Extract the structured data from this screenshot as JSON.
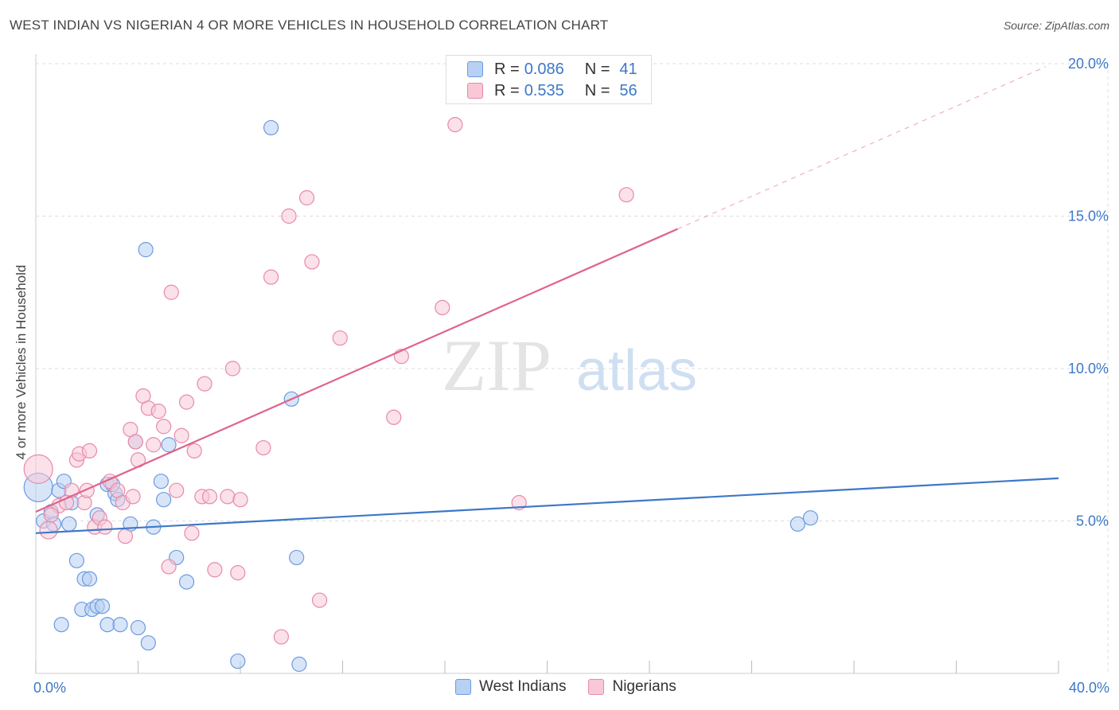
{
  "title": "WEST INDIAN VS NIGERIAN 4 OR MORE VEHICLES IN HOUSEHOLD CORRELATION CHART",
  "source": "Source: ZipAtlas.com",
  "watermark": {
    "zip": "ZIP",
    "atlas": "atlas"
  },
  "legend": {
    "r_label": "R =",
    "n_label": "N =",
    "rows": [
      {
        "r": "0.086",
        "n": "41",
        "color": "#6b9be0",
        "fill": "#b8d0f3"
      },
      {
        "r": "0.535",
        "n": "56",
        "color": "#e88aa8",
        "fill": "#f8c8d7"
      }
    ]
  },
  "bottom_legend": [
    "West Indians",
    "Nigerians"
  ],
  "chart_data": {
    "type": "scatter",
    "title": "WEST INDIAN VS NIGERIAN 4 OR MORE VEHICLES IN HOUSEHOLD CORRELATION CHART",
    "xlabel": "",
    "ylabel": "4 or more Vehicles in Household",
    "xlim": [
      0,
      40
    ],
    "ylim": [
      0,
      20
    ],
    "x_tick_labels": [
      "0.0%",
      "40.0%"
    ],
    "y_ticks": [
      5,
      10,
      15,
      20
    ],
    "y_tick_labels": [
      "5.0%",
      "10.0%",
      "15.0%",
      "20.0%"
    ],
    "series": [
      {
        "name": "West Indians",
        "color": "#3d78c8",
        "fill": "#b8d0f3",
        "stroke": "#6b9be0",
        "trend": {
          "x0": 0,
          "y0": 4.6,
          "x1": 40,
          "y1": 6.4,
          "solid_to": 40
        },
        "points": [
          {
            "x": 0.1,
            "y": 6.1,
            "r": 18
          },
          {
            "x": 0.3,
            "y": 5.0,
            "r": 9
          },
          {
            "x": 0.6,
            "y": 5.3,
            "r": 9
          },
          {
            "x": 0.9,
            "y": 6.0,
            "r": 9
          },
          {
            "x": 1.1,
            "y": 6.3,
            "r": 9
          },
          {
            "x": 1.4,
            "y": 5.6,
            "r": 9
          },
          {
            "x": 0.7,
            "y": 4.9,
            "r": 9
          },
          {
            "x": 1.3,
            "y": 4.9,
            "r": 9
          },
          {
            "x": 2.4,
            "y": 5.2,
            "r": 9
          },
          {
            "x": 2.8,
            "y": 6.2,
            "r": 9
          },
          {
            "x": 3.1,
            "y": 5.9,
            "r": 9
          },
          {
            "x": 3.2,
            "y": 5.7,
            "r": 9
          },
          {
            "x": 3.7,
            "y": 4.9,
            "r": 9
          },
          {
            "x": 4.6,
            "y": 4.8,
            "r": 9
          },
          {
            "x": 4.9,
            "y": 6.3,
            "r": 9
          },
          {
            "x": 5.0,
            "y": 5.7,
            "r": 9
          },
          {
            "x": 5.2,
            "y": 7.5,
            "r": 9
          },
          {
            "x": 3.9,
            "y": 7.6,
            "r": 9
          },
          {
            "x": 1.6,
            "y": 3.7,
            "r": 9
          },
          {
            "x": 1.9,
            "y": 3.1,
            "r": 9
          },
          {
            "x": 2.1,
            "y": 3.1,
            "r": 9
          },
          {
            "x": 1.8,
            "y": 2.1,
            "r": 9
          },
          {
            "x": 2.2,
            "y": 2.1,
            "r": 9
          },
          {
            "x": 2.4,
            "y": 2.2,
            "r": 9
          },
          {
            "x": 2.6,
            "y": 2.2,
            "r": 9
          },
          {
            "x": 1.0,
            "y": 1.6,
            "r": 9
          },
          {
            "x": 2.8,
            "y": 1.6,
            "r": 9
          },
          {
            "x": 3.3,
            "y": 1.6,
            "r": 9
          },
          {
            "x": 4.0,
            "y": 1.5,
            "r": 9
          },
          {
            "x": 4.4,
            "y": 1.0,
            "r": 9
          },
          {
            "x": 5.5,
            "y": 3.8,
            "r": 9
          },
          {
            "x": 5.9,
            "y": 3.0,
            "r": 9
          },
          {
            "x": 4.3,
            "y": 13.9,
            "r": 9
          },
          {
            "x": 9.2,
            "y": 17.9,
            "r": 9
          },
          {
            "x": 10.0,
            "y": 9.0,
            "r": 9
          },
          {
            "x": 10.2,
            "y": 3.8,
            "r": 9
          },
          {
            "x": 7.9,
            "y": 0.4,
            "r": 9
          },
          {
            "x": 10.3,
            "y": 0.3,
            "r": 9
          },
          {
            "x": 29.8,
            "y": 4.9,
            "r": 9
          },
          {
            "x": 30.3,
            "y": 5.1,
            "r": 9
          },
          {
            "x": 3.0,
            "y": 6.2,
            "r": 9
          }
        ]
      },
      {
        "name": "Nigerians",
        "color": "#e0638d",
        "fill": "#f8c8d7",
        "stroke": "#e88aa8",
        "trend": {
          "x0": 0,
          "y0": 5.3,
          "x1": 39.5,
          "y1": 19.9,
          "solid_to": 25.1
        },
        "points": [
          {
            "x": 0.1,
            "y": 6.7,
            "r": 18
          },
          {
            "x": 0.5,
            "y": 4.7,
            "r": 11
          },
          {
            "x": 0.9,
            "y": 5.5,
            "r": 9
          },
          {
            "x": 1.4,
            "y": 6.0,
            "r": 9
          },
          {
            "x": 1.6,
            "y": 7.0,
            "r": 9
          },
          {
            "x": 1.7,
            "y": 7.2,
            "r": 9
          },
          {
            "x": 2.1,
            "y": 7.3,
            "r": 9
          },
          {
            "x": 1.9,
            "y": 5.6,
            "r": 9
          },
          {
            "x": 2.3,
            "y": 4.8,
            "r": 9
          },
          {
            "x": 2.5,
            "y": 5.1,
            "r": 9
          },
          {
            "x": 2.9,
            "y": 6.3,
            "r": 9
          },
          {
            "x": 3.2,
            "y": 6.0,
            "r": 9
          },
          {
            "x": 3.4,
            "y": 5.6,
            "r": 9
          },
          {
            "x": 3.5,
            "y": 4.5,
            "r": 9
          },
          {
            "x": 3.7,
            "y": 8.0,
            "r": 9
          },
          {
            "x": 3.9,
            "y": 7.6,
            "r": 9
          },
          {
            "x": 4.0,
            "y": 7.0,
            "r": 9
          },
          {
            "x": 4.2,
            "y": 9.1,
            "r": 9
          },
          {
            "x": 4.4,
            "y": 8.7,
            "r": 9
          },
          {
            "x": 4.6,
            "y": 7.5,
            "r": 9
          },
          {
            "x": 4.8,
            "y": 8.6,
            "r": 9
          },
          {
            "x": 5.0,
            "y": 8.1,
            "r": 9
          },
          {
            "x": 5.3,
            "y": 12.5,
            "r": 9
          },
          {
            "x": 5.5,
            "y": 6.0,
            "r": 9
          },
          {
            "x": 5.7,
            "y": 7.8,
            "r": 9
          },
          {
            "x": 5.9,
            "y": 8.9,
            "r": 9
          },
          {
            "x": 6.1,
            "y": 4.6,
            "r": 9
          },
          {
            "x": 6.2,
            "y": 7.3,
            "r": 9
          },
          {
            "x": 6.5,
            "y": 5.8,
            "r": 9
          },
          {
            "x": 6.6,
            "y": 9.5,
            "r": 9
          },
          {
            "x": 7.0,
            "y": 3.4,
            "r": 9
          },
          {
            "x": 7.5,
            "y": 5.8,
            "r": 9
          },
          {
            "x": 7.7,
            "y": 10.0,
            "r": 9
          },
          {
            "x": 7.9,
            "y": 3.3,
            "r": 9
          },
          {
            "x": 8.0,
            "y": 5.7,
            "r": 9
          },
          {
            "x": 8.9,
            "y": 7.4,
            "r": 9
          },
          {
            "x": 9.2,
            "y": 13.0,
            "r": 9
          },
          {
            "x": 9.6,
            "y": 1.2,
            "r": 9
          },
          {
            "x": 9.9,
            "y": 15.0,
            "r": 9
          },
          {
            "x": 10.6,
            "y": 15.6,
            "r": 9
          },
          {
            "x": 10.8,
            "y": 13.5,
            "r": 9
          },
          {
            "x": 11.1,
            "y": 2.4,
            "r": 9
          },
          {
            "x": 11.9,
            "y": 11.0,
            "r": 9
          },
          {
            "x": 14.3,
            "y": 10.4,
            "r": 9
          },
          {
            "x": 14.0,
            "y": 8.4,
            "r": 9
          },
          {
            "x": 15.9,
            "y": 12.0,
            "r": 9
          },
          {
            "x": 16.4,
            "y": 18.0,
            "r": 9
          },
          {
            "x": 18.9,
            "y": 5.6,
            "r": 9
          },
          {
            "x": 23.1,
            "y": 15.7,
            "r": 9
          },
          {
            "x": 5.2,
            "y": 3.5,
            "r": 9
          },
          {
            "x": 1.2,
            "y": 5.6,
            "r": 9
          },
          {
            "x": 2.7,
            "y": 4.8,
            "r": 9
          },
          {
            "x": 3.8,
            "y": 5.8,
            "r": 9
          },
          {
            "x": 6.8,
            "y": 5.8,
            "r": 9
          },
          {
            "x": 2.0,
            "y": 6.0,
            "r": 9
          },
          {
            "x": 0.6,
            "y": 5.2,
            "r": 9
          }
        ]
      }
    ]
  }
}
